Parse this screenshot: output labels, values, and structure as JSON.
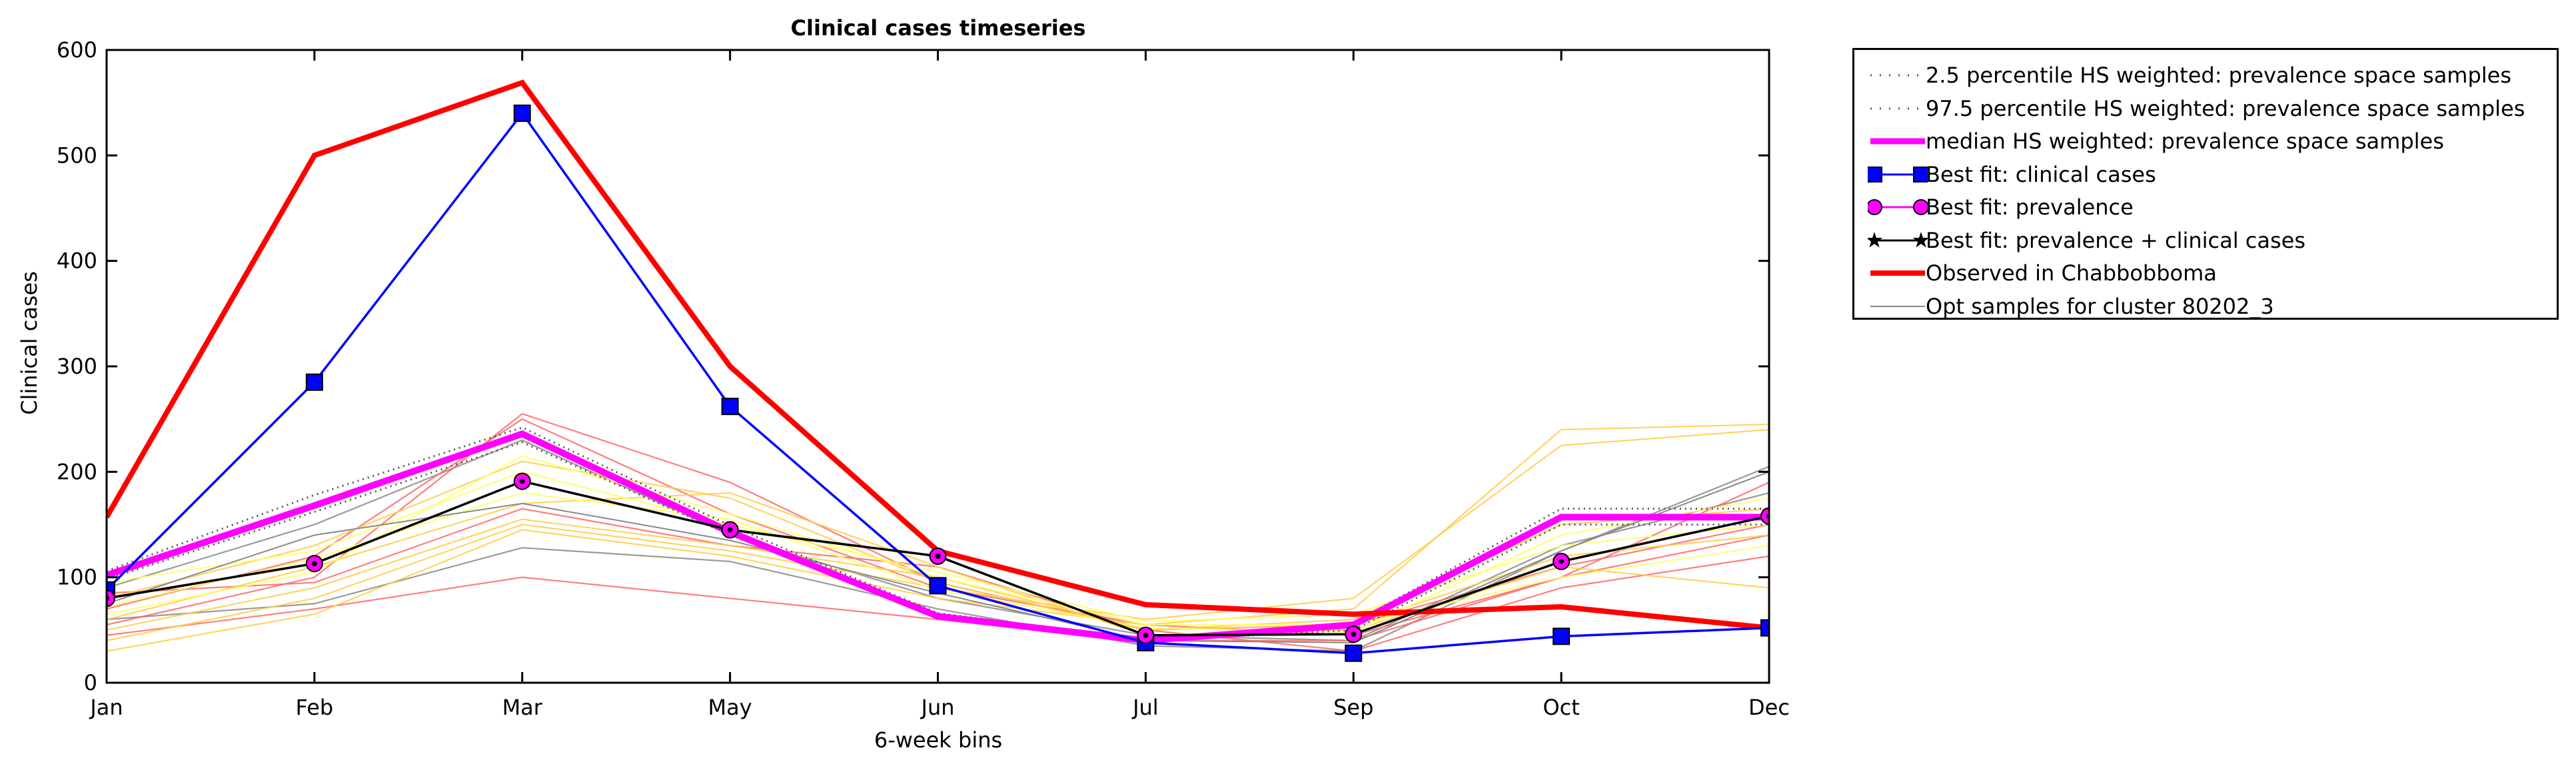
{
  "chart_data": {
    "type": "line",
    "title": "Clinical cases timeseries",
    "xlabel": "6-week bins",
    "ylabel": "Clinical cases",
    "categories": [
      "Jan",
      "Feb",
      "Mar",
      "May",
      "Jun",
      "Jul",
      "Sep",
      "Oct",
      "Dec"
    ],
    "ylim": [
      0,
      600
    ],
    "yticks": [
      0,
      100,
      200,
      300,
      400,
      500,
      600
    ],
    "grid": false,
    "legend_position": "outside-right-top",
    "series": [
      {
        "name": "2.5 percentile HS weighted: prevalence space samples",
        "style": "dotted",
        "color": "#555555",
        "values": [
          98,
          162,
          228,
          140,
          65,
          40,
          50,
          150,
          150
        ]
      },
      {
        "name": "97.5 percentile HS weighted: prevalence space samples",
        "style": "dotted",
        "color": "#555555",
        "values": [
          106,
          178,
          242,
          149,
          66,
          41,
          57,
          165,
          165
        ]
      },
      {
        "name": "median HS weighted: prevalence space samples",
        "style": "solid",
        "color": "#ff00ff",
        "values": [
          102,
          168,
          236,
          143,
          63,
          40,
          55,
          157,
          157
        ]
      },
      {
        "name": "Best fit: clinical cases",
        "style": "square",
        "color": "#0000ff",
        "values": [
          88,
          285,
          540,
          262,
          92,
          38,
          28,
          44,
          52
        ]
      },
      {
        "name": "Best fit: prevalence",
        "style": "circle",
        "color": "#ff00ff",
        "values": [
          80,
          113,
          191,
          145,
          120,
          45,
          46,
          115,
          158
        ]
      },
      {
        "name": "Best fit: prevalence + clinical cases",
        "style": "star",
        "color": "#000000",
        "values": [
          80,
          113,
          191,
          145,
          120,
          45,
          46,
          115,
          158
        ]
      },
      {
        "name": "Observed in Chabbobboma",
        "style": "thick",
        "color": "#ff0000",
        "values": [
          157,
          500,
          569,
          300,
          125,
          74,
          65,
          72,
          52
        ]
      },
      {
        "name": "Opt samples for cluster 80202_3",
        "style": "thin",
        "color": "#888888",
        "values": [
          75,
          140,
          170,
          135,
          85,
          40,
          38,
          125,
          200
        ]
      }
    ],
    "background_samples": [
      {
        "color": "#888888",
        "values": [
          60,
          75,
          128,
          115,
          70,
          35,
          30,
          125,
          205
        ]
      },
      {
        "color": "#888888",
        "values": [
          90,
          150,
          230,
          140,
          80,
          45,
          40,
          130,
          180
        ]
      },
      {
        "color": "#ff6666",
        "values": [
          55,
          100,
          255,
          190,
          95,
          50,
          30,
          90,
          120
        ]
      },
      {
        "color": "#ff6666",
        "values": [
          45,
          70,
          100,
          80,
          60,
          40,
          40,
          100,
          190
        ]
      },
      {
        "color": "#ff6666",
        "values": [
          70,
          120,
          250,
          160,
          90,
          55,
          45,
          100,
          140
        ]
      },
      {
        "color": "#ff6666",
        "values": [
          85,
          95,
          165,
          130,
          110,
          50,
          55,
          110,
          150
        ]
      },
      {
        "color": "#ffcc44",
        "values": [
          30,
          65,
          145,
          120,
          80,
          55,
          70,
          240,
          245
        ]
      },
      {
        "color": "#ffcc44",
        "values": [
          40,
          80,
          150,
          125,
          90,
          60,
          80,
          225,
          240
        ]
      },
      {
        "color": "#ffcc44",
        "values": [
          50,
          90,
          155,
          130,
          100,
          50,
          60,
          150,
          165
        ]
      },
      {
        "color": "#ffcc44",
        "values": [
          60,
          110,
          170,
          180,
          110,
          45,
          50,
          110,
          90
        ]
      },
      {
        "color": "#ffcc44",
        "values": [
          80,
          130,
          210,
          175,
          95,
          50,
          55,
          120,
          140
        ]
      },
      {
        "color": "#ffff66",
        "values": [
          65,
          105,
          215,
          160,
          100,
          55,
          55,
          100,
          130
        ]
      },
      {
        "color": "#ffff66",
        "values": [
          95,
          125,
          200,
          150,
          105,
          58,
          65,
          130,
          150
        ]
      },
      {
        "color": "#ffff66",
        "values": [
          72,
          118,
          180,
          155,
          88,
          52,
          48,
          140,
          175
        ]
      }
    ]
  }
}
